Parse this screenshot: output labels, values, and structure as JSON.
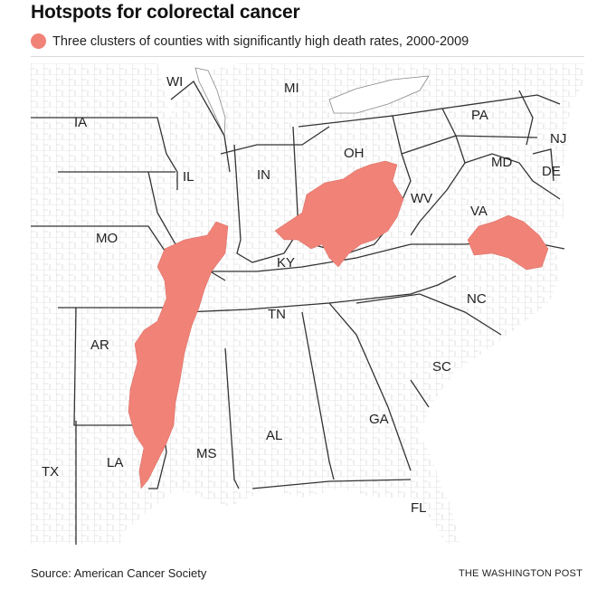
{
  "title": "Hotspots for colorectal cancer",
  "legend": {
    "label": "Three clusters of counties with significantly high death rates, 2000-2009",
    "color": "#f08278"
  },
  "map": {
    "states": [
      "WI",
      "MI",
      "IA",
      "PA",
      "NJ",
      "OH",
      "MD",
      "DE",
      "IL",
      "IN",
      "WV",
      "VA",
      "MO",
      "KY",
      "NC",
      "TN",
      "AR",
      "SC",
      "GA",
      "AL",
      "MS",
      "LA",
      "TX",
      "FL"
    ]
  },
  "source": "Source: American Cancer Society",
  "credit": "THE WASHINGTON POST"
}
